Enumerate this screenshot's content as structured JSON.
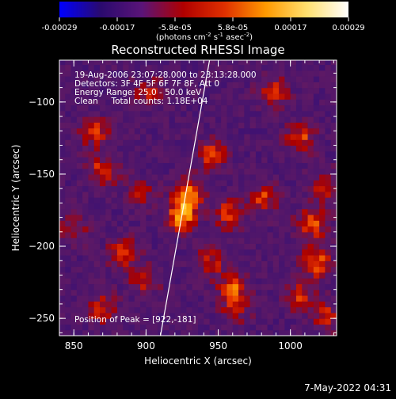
{
  "colorbar": {
    "tick_labels": [
      "-0.00029",
      "-0.00017",
      "-5.8e-05",
      "5.8e-05",
      "0.00017",
      "0.00029"
    ],
    "units_prefix": "(photons cm",
    "units_exp1": "-2",
    "units_mid1": " s",
    "units_exp2": "-1",
    "units_mid2": " asec",
    "units_exp3": "-2",
    "units_suffix": ")",
    "colors": [
      "#0000ff",
      "#2a0a6e",
      "#5a1478",
      "#b00000",
      "#e03000",
      "#ff9a00",
      "#ffe070",
      "#ffffff"
    ]
  },
  "chart_data": {
    "type": "heatmap",
    "title": "Reconstructed RHESSI Image",
    "xlabel": "Heliocentric X (arcsec)",
    "ylabel": "Heliocentric Y (arcsec)",
    "xlim": [
      840,
      1032
    ],
    "ylim": [
      -262,
      -71
    ],
    "x_ticks": [
      850,
      900,
      950,
      1000
    ],
    "y_ticks": [
      -100,
      -150,
      -200,
      -250
    ],
    "x_tick_labels": [
      "850",
      "900",
      "950",
      "1000"
    ],
    "y_tick_labels": [
      "−100",
      "−150",
      "−200",
      "−250"
    ],
    "value_range": [
      -0.00029,
      0.00029
    ],
    "annotations": {
      "time_range": "19-Aug-2006 23:07:28.000 to 23:13:28.000",
      "detectors": "Detectors: 3F 4F 5F 6F 7F 8F, Att 0",
      "energy": "Energy Range: 25.0 - 50.0 keV",
      "clean": "Clean     Total counts: 1.18E+04",
      "peak": "Position of Peak = [922,-181]"
    },
    "peak_position": [
      922,
      -181
    ],
    "limb_line": [
      [
        910,
        -262
      ],
      [
        944,
        -71
      ]
    ],
    "hot_spots": [
      {
        "x": 922,
        "y": -181,
        "v": 0.00029
      },
      {
        "x": 928,
        "y": -165,
        "v": 0.00025
      },
      {
        "x": 944,
        "y": -138,
        "v": 0.00022
      },
      {
        "x": 955,
        "y": -179,
        "v": 0.0002
      },
      {
        "x": 868,
        "y": -150,
        "v": 0.0002
      },
      {
        "x": 863,
        "y": -123,
        "v": 0.00018
      },
      {
        "x": 1005,
        "y": -127,
        "v": 0.00019
      },
      {
        "x": 1013,
        "y": -186,
        "v": 0.00024
      },
      {
        "x": 1016,
        "y": -213,
        "v": 0.00024
      },
      {
        "x": 1004,
        "y": -236,
        "v": 0.00019
      },
      {
        "x": 979,
        "y": -168,
        "v": 0.00018
      },
      {
        "x": 986,
        "y": -95,
        "v": 0.00019
      },
      {
        "x": 900,
        "y": -95,
        "v": 0.00015
      },
      {
        "x": 882,
        "y": -207,
        "v": 0.0002
      },
      {
        "x": 868,
        "y": -245,
        "v": 0.00017
      },
      {
        "x": 958,
        "y": -230,
        "v": 0.0002
      },
      {
        "x": 942,
        "y": -213,
        "v": 0.00016
      },
      {
        "x": 897,
        "y": -225,
        "v": 0.00015
      },
      {
        "x": 848,
        "y": -190,
        "v": 0.00014
      },
      {
        "x": 1022,
        "y": -160,
        "v": 0.00016
      },
      {
        "x": 1023,
        "y": -250,
        "v": 0.00016
      },
      {
        "x": 960,
        "y": -245,
        "v": 0.00014
      },
      {
        "x": 895,
        "y": -165,
        "v": 0.00012
      }
    ]
  },
  "footer": {
    "date": "7-May-2022 04:31"
  }
}
